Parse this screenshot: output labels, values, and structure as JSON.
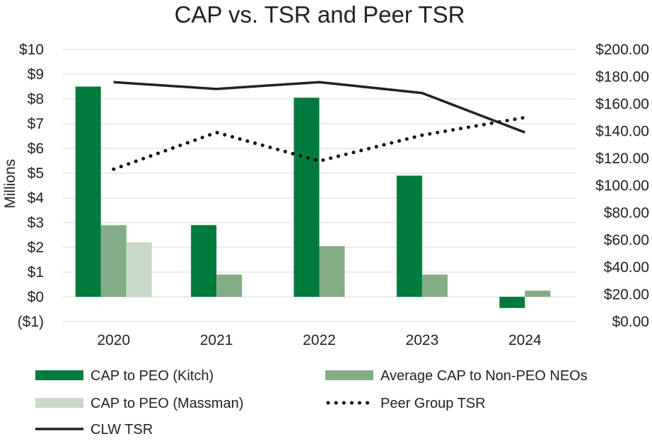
{
  "chart_data": {
    "type": "bar",
    "title": "CAP vs. TSR and Peer TSR",
    "ylabel": "Millions",
    "categories": [
      "2020",
      "2021",
      "2022",
      "2023",
      "2024"
    ],
    "y_left": {
      "range": [
        -1,
        10
      ],
      "ticks": [
        -1,
        0,
        1,
        2,
        3,
        4,
        5,
        6,
        7,
        8,
        9,
        10
      ],
      "tick_labels": [
        "($1)",
        "$0",
        "$1",
        "$2",
        "$3",
        "$4",
        "$5",
        "$6",
        "$7",
        "$8",
        "$9",
        "$10"
      ]
    },
    "y_right": {
      "range": [
        0,
        200
      ],
      "ticks": [
        0,
        20,
        40,
        60,
        80,
        100,
        120,
        140,
        160,
        180,
        200
      ],
      "tick_labels": [
        "$0.00",
        "$20.00",
        "$40.00",
        "$60.00",
        "$80.00",
        "$100.00",
        "$120.00",
        "$140.00",
        "$160.00",
        "$180.00",
        "$200.00"
      ]
    },
    "bar_series": [
      {
        "name": "CAP to PEO (Kitch)",
        "color": "#007a3d",
        "values": [
          8.5,
          2.9,
          8.05,
          4.9,
          -0.45
        ]
      },
      {
        "name": "Average CAP to Non-PEO NEOs",
        "color": "#84ad86",
        "values": [
          2.9,
          0.9,
          2.05,
          0.9,
          0.25
        ]
      },
      {
        "name": "CAP to PEO (Massman)",
        "color": "#c8d9c9",
        "values": [
          2.2,
          null,
          null,
          null,
          null
        ]
      }
    ],
    "line_series": [
      {
        "name": "Peer Group TSR",
        "color": "#111111",
        "style": "dotted",
        "axis": "right",
        "values": [
          112,
          139,
          118,
          137,
          150
        ]
      },
      {
        "name": "CLW TSR",
        "color": "#222222",
        "style": "solid",
        "axis": "right",
        "values": [
          176,
          171,
          176,
          168,
          139
        ]
      }
    ],
    "legend": [
      {
        "name": "CAP to PEO (Kitch)",
        "kind": "bar",
        "color": "#007a3d"
      },
      {
        "name": "Average CAP to Non-PEO NEOs",
        "kind": "bar",
        "color": "#84ad86"
      },
      {
        "name": "CAP to PEO (Massman)",
        "kind": "bar",
        "color": "#c8d9c9"
      },
      {
        "name": "Peer Group TSR",
        "kind": "dotted",
        "color": "#111111"
      },
      {
        "name": "CLW TSR",
        "kind": "solid",
        "color": "#222222"
      }
    ],
    "grid": true,
    "legend_position": "bottom"
  }
}
